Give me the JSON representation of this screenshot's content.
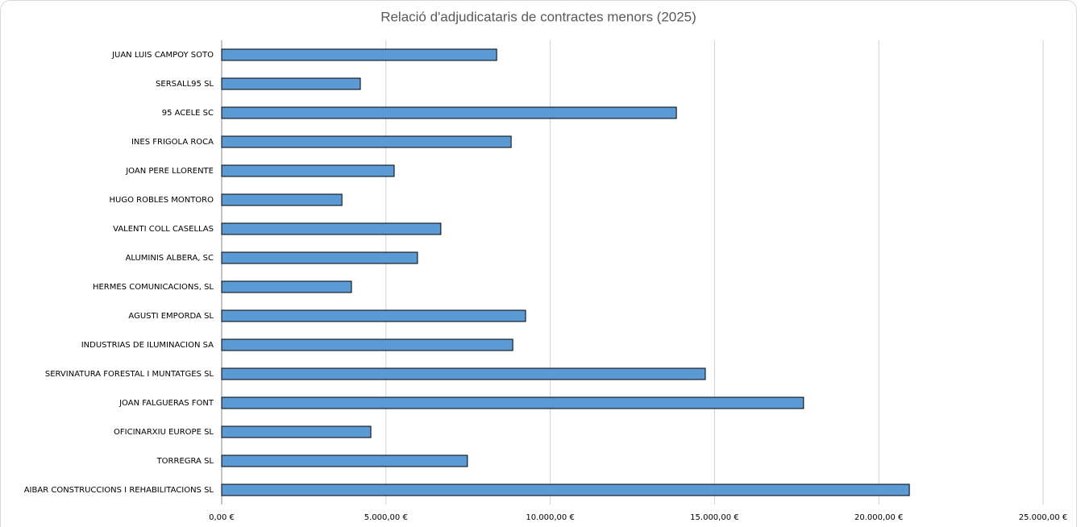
{
  "chart_data": {
    "type": "barh",
    "title": "Relació d'adjudicataris de contractes menors (2025)",
    "categories": [
      "JUAN LUIS CAMPOY SOTO",
      "SERSALL95 SL",
      "95 ACELE SC",
      "INES FRIGOLA ROCA",
      "JOAN PERE LLORENTE",
      "HUGO ROBLES MONTORO",
      "VALENTI COLL CASELLAS",
      "ALUMINIS ALBERA, SC",
      "HERMES COMUNICACIONS, SL",
      "AGUSTI EMPORDA SL",
      "INDUSTRIAS DE ILUMINACION SA",
      "SERVINATURA FORESTAL I MUNTATGES SL",
      "JOAN FALGUERAS FONT",
      "OFICINARXIU EUROPE SL",
      "TORREGRA SL",
      "AIBAR CONSTRUCCIONS I REHABILITACIONS SL"
    ],
    "values": [
      8370,
      4220,
      13840,
      8810,
      5250,
      3660,
      6670,
      5960,
      3950,
      9250,
      8860,
      14720,
      17710,
      4540,
      7480,
      20930
    ],
    "color": "#5b9bd5",
    "xlim": [
      0,
      25000
    ],
    "xticks": [
      {
        "value": 0,
        "label": "0,00 €"
      },
      {
        "value": 5000,
        "label": "5.000,00 €"
      },
      {
        "value": 10000,
        "label": "10.000,00 €"
      },
      {
        "value": 15000,
        "label": "15.000,00 €"
      },
      {
        "value": 20000,
        "label": "20.000,00 €"
      },
      {
        "value": 25000,
        "label": "25.000,00 €"
      }
    ],
    "grid": true
  }
}
